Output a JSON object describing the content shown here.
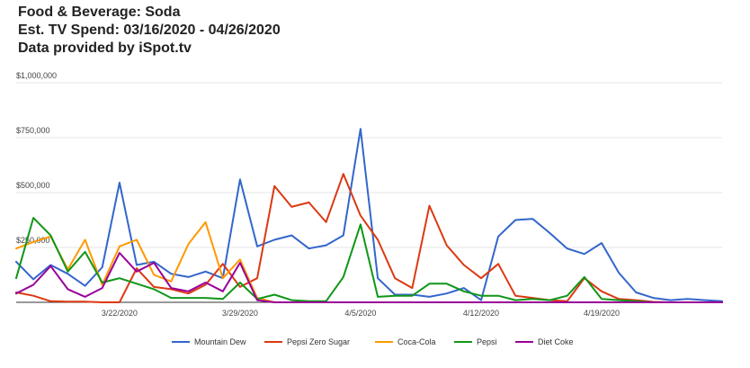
{
  "chart_data": {
    "type": "line",
    "title_lines": [
      "Food & Beverage: Soda",
      "Est. TV Spend: 03/16/2020 - 04/26/2020",
      "Data provided by iSpot.tv"
    ],
    "xlabel": "",
    "ylabel": "",
    "x_range": [
      "2020-03-16",
      "2020-04-26"
    ],
    "ylim": [
      0,
      1000000
    ],
    "y_ticks": [
      {
        "value": 250000,
        "label": "$250,000"
      },
      {
        "value": 500000,
        "label": "$500,000"
      },
      {
        "value": 750000,
        "label": "$750,000"
      },
      {
        "value": 1000000,
        "label": "$1,000,000"
      }
    ],
    "x_ticks": [
      {
        "date": "2020-03-22",
        "label": "3/22/2020"
      },
      {
        "date": "2020-03-29",
        "label": "3/29/2020"
      },
      {
        "date": "2020-04-05",
        "label": "4/5/2020"
      },
      {
        "date": "2020-04-12",
        "label": "4/12/2020"
      },
      {
        "date": "2020-04-19",
        "label": "4/19/2020"
      }
    ],
    "grid": true,
    "legend": "bottom",
    "x": [
      "2020-03-16",
      "2020-03-17",
      "2020-03-18",
      "2020-03-19",
      "2020-03-20",
      "2020-03-21",
      "2020-03-22",
      "2020-03-23",
      "2020-03-24",
      "2020-03-25",
      "2020-03-26",
      "2020-03-27",
      "2020-03-28",
      "2020-03-29",
      "2020-03-30",
      "2020-03-31",
      "2020-04-01",
      "2020-04-02",
      "2020-04-03",
      "2020-04-04",
      "2020-04-05",
      "2020-04-06",
      "2020-04-07",
      "2020-04-08",
      "2020-04-09",
      "2020-04-10",
      "2020-04-11",
      "2020-04-12",
      "2020-04-13",
      "2020-04-14",
      "2020-04-15",
      "2020-04-16",
      "2020-04-17",
      "2020-04-18",
      "2020-04-19",
      "2020-04-20",
      "2020-04-21",
      "2020-04-22",
      "2020-04-23",
      "2020-04-24",
      "2020-04-25",
      "2020-04-26"
    ],
    "series": [
      {
        "name": "Mountain Dew",
        "color": "#3366cc",
        "values": [
          185000,
          105000,
          170000,
          130000,
          75000,
          160000,
          545000,
          170000,
          185000,
          130000,
          115000,
          140000,
          110000,
          560000,
          255000,
          285000,
          305000,
          245000,
          260000,
          305000,
          790000,
          110000,
          35000,
          35000,
          25000,
          40000,
          65000,
          10000,
          300000,
          375000,
          380000,
          315000,
          245000,
          220000,
          270000,
          135000,
          45000,
          20000,
          10000,
          15000,
          10000,
          5000
        ]
      },
      {
        "name": "Pepsi Zero Sugar",
        "color": "#dc3912",
        "values": [
          45000,
          30000,
          5000,
          3000,
          3000,
          0,
          0,
          155000,
          70000,
          60000,
          40000,
          80000,
          175000,
          70000,
          110000,
          530000,
          435000,
          455000,
          365000,
          585000,
          395000,
          285000,
          110000,
          65000,
          440000,
          260000,
          170000,
          110000,
          175000,
          30000,
          20000,
          10000,
          5000,
          110000,
          50000,
          15000,
          10000,
          2000,
          0,
          0,
          0,
          0
        ]
      },
      {
        "name": "Coca-Cola",
        "color": "#ff9900",
        "values": [
          245000,
          275000,
          300000,
          150000,
          285000,
          80000,
          255000,
          285000,
          125000,
          95000,
          265000,
          365000,
          110000,
          195000,
          20000,
          0,
          0,
          0,
          0,
          0,
          0,
          0,
          0,
          0,
          0,
          0,
          0,
          0,
          0,
          0,
          0,
          0,
          0,
          0,
          0,
          0,
          0,
          0,
          0,
          0,
          0,
          0
        ]
      },
      {
        "name": "Pepsi",
        "color": "#109618",
        "values": [
          110000,
          385000,
          305000,
          140000,
          230000,
          90000,
          110000,
          85000,
          60000,
          20000,
          20000,
          20000,
          15000,
          90000,
          15000,
          35000,
          10000,
          5000,
          5000,
          115000,
          355000,
          25000,
          30000,
          30000,
          85000,
          85000,
          50000,
          30000,
          30000,
          10000,
          15000,
          10000,
          30000,
          115000,
          15000,
          10000,
          5000,
          0,
          0,
          0,
          0,
          0
        ]
      },
      {
        "name": "Diet Coke",
        "color": "#990099",
        "values": [
          40000,
          80000,
          165000,
          60000,
          25000,
          65000,
          225000,
          140000,
          180000,
          65000,
          50000,
          90000,
          50000,
          180000,
          10000,
          0,
          0,
          0,
          0,
          0,
          0,
          0,
          0,
          0,
          0,
          0,
          0,
          0,
          0,
          0,
          0,
          0,
          0,
          0,
          0,
          0,
          0,
          0,
          0,
          0,
          0,
          0
        ]
      }
    ]
  }
}
